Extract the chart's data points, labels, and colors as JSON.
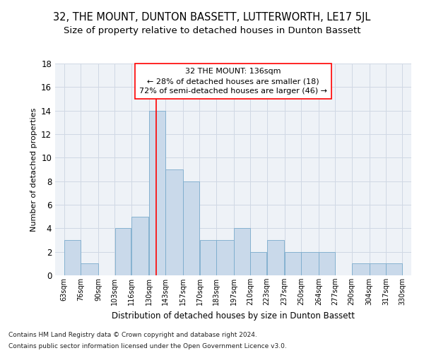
{
  "title": "32, THE MOUNT, DUNTON BASSETT, LUTTERWORTH, LE17 5JL",
  "subtitle": "Size of property relative to detached houses in Dunton Bassett",
  "xlabel": "Distribution of detached houses by size in Dunton Bassett",
  "ylabel": "Number of detached properties",
  "footnote1": "Contains HM Land Registry data © Crown copyright and database right 2024.",
  "footnote2": "Contains public sector information licensed under the Open Government Licence v3.0.",
  "annotation_line1": "32 THE MOUNT: 136sqm",
  "annotation_line2": "← 28% of detached houses are smaller (18)",
  "annotation_line3": "72% of semi-detached houses are larger (46) →",
  "bar_left_edges": [
    63,
    76,
    90,
    103,
    116,
    130,
    143,
    157,
    170,
    183,
    197,
    210,
    223,
    237,
    250,
    264,
    277,
    290,
    304,
    317
  ],
  "bar_widths": [
    13,
    14,
    13,
    13,
    14,
    13,
    14,
    13,
    13,
    14,
    13,
    13,
    14,
    13,
    14,
    13,
    13,
    14,
    13,
    13
  ],
  "bar_heights": [
    3,
    1,
    0,
    4,
    5,
    14,
    9,
    8,
    3,
    3,
    4,
    2,
    3,
    2,
    2,
    2,
    0,
    1,
    1,
    1
  ],
  "bar_color": "#c9d9ea",
  "bar_edge_color": "#7aabcc",
  "red_line_x": 136,
  "ylim": [
    0,
    18
  ],
  "xlim": [
    56,
    337
  ],
  "tick_labels": [
    "63sqm",
    "76sqm",
    "90sqm",
    "103sqm",
    "116sqm",
    "130sqm",
    "143sqm",
    "157sqm",
    "170sqm",
    "183sqm",
    "197sqm",
    "210sqm",
    "223sqm",
    "237sqm",
    "250sqm",
    "264sqm",
    "277sqm",
    "290sqm",
    "304sqm",
    "317sqm",
    "330sqm"
  ],
  "tick_positions": [
    63,
    76,
    90,
    103,
    116,
    130,
    143,
    157,
    170,
    183,
    197,
    210,
    223,
    237,
    250,
    264,
    277,
    290,
    304,
    317,
    330
  ],
  "background_color": "#eef2f7",
  "grid_color": "#d0d8e4",
  "title_fontsize": 10.5,
  "subtitle_fontsize": 9.5,
  "ytick_fontsize": 8.5,
  "xtick_fontsize": 7,
  "ylabel_fontsize": 8,
  "xlabel_fontsize": 8.5,
  "footnote_fontsize": 6.5,
  "annot_fontsize": 8
}
